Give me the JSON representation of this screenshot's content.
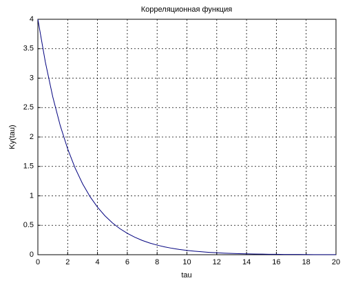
{
  "chart_data": {
    "type": "line",
    "title": "Корреляционная функция",
    "x_label": "tau",
    "y_label": "Ky(tau)",
    "x": [
      0,
      0.5,
      1,
      1.5,
      2,
      2.5,
      3,
      3.5,
      4,
      4.5,
      5,
      5.5,
      6,
      6.5,
      7,
      7.5,
      8,
      8.5,
      9,
      9.5,
      10,
      10.5,
      11,
      11.5,
      12,
      12.5,
      13,
      13.5,
      14,
      14.5,
      15,
      15.5,
      16,
      16.5,
      17,
      17.5,
      18,
      18.5,
      19,
      19.5,
      20
    ],
    "values": [
      4.0,
      3.275,
      2.681,
      2.195,
      1.797,
      1.472,
      1.205,
      0.986,
      0.808,
      0.661,
      0.541,
      0.443,
      0.363,
      0.297,
      0.243,
      0.199,
      0.163,
      0.133,
      0.109,
      0.089,
      0.073,
      0.06,
      0.049,
      0.04,
      0.033,
      0.027,
      0.022,
      0.018,
      0.015,
      0.012,
      0.01,
      0.008,
      0.007,
      0.005,
      0.004,
      0.004,
      0.003,
      0.002,
      0.002,
      0.002,
      0.001
    ],
    "color": "#00007f",
    "xlim": [
      0,
      20
    ],
    "xticks": [
      0,
      2,
      4,
      6,
      8,
      10,
      12,
      14,
      16,
      18,
      20
    ],
    "ylim": [
      0,
      4
    ],
    "yticks": [
      0,
      0.5,
      1,
      1.5,
      2,
      2.5,
      3,
      3.5,
      4
    ],
    "grid": true
  }
}
